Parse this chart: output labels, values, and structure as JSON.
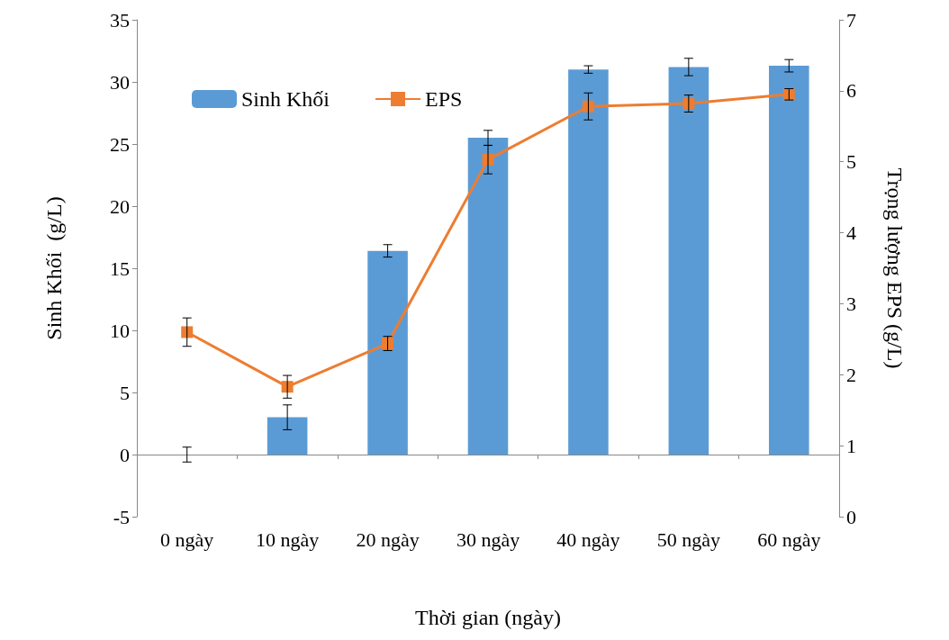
{
  "chart_data": {
    "type": "bar",
    "xlabel": "Thời gian (ngày)",
    "ylabel": "Sinh Khối  (g/L)",
    "y2label": "Trọng lượng EPS (g/L)",
    "categories": [
      "0 ngày",
      "10 ngày",
      "20 ngày",
      "30 ngày",
      "40 ngày",
      "50 ngày",
      "60 ngày"
    ],
    "series": [
      {
        "name": "Sinh Khối",
        "color": "#5b9bd5",
        "values": [
          0,
          3.0,
          16.4,
          25.5,
          31.0,
          31.2,
          31.3
        ],
        "errors": [
          0.6,
          1.0,
          0.5,
          0.6,
          0.3,
          0.7,
          0.5
        ]
      },
      {
        "name": "EPS",
        "type": "line",
        "axis": "y2",
        "color": "#ed7d31",
        "marker": "square",
        "values": [
          2.6,
          1.83,
          2.44,
          5.03,
          5.78,
          5.82,
          5.95
        ],
        "errors": [
          0.2,
          0.16,
          0.1,
          0.2,
          0.19,
          0.12,
          0.08
        ]
      }
    ],
    "ylim": [
      -5,
      35
    ],
    "yticks": [
      -5,
      0,
      5,
      10,
      15,
      20,
      25,
      30,
      35
    ],
    "y2lim": [
      0,
      7
    ],
    "y2ticks": [
      0,
      1,
      2,
      3,
      4,
      5,
      6,
      7
    ],
    "legend": "top left"
  }
}
